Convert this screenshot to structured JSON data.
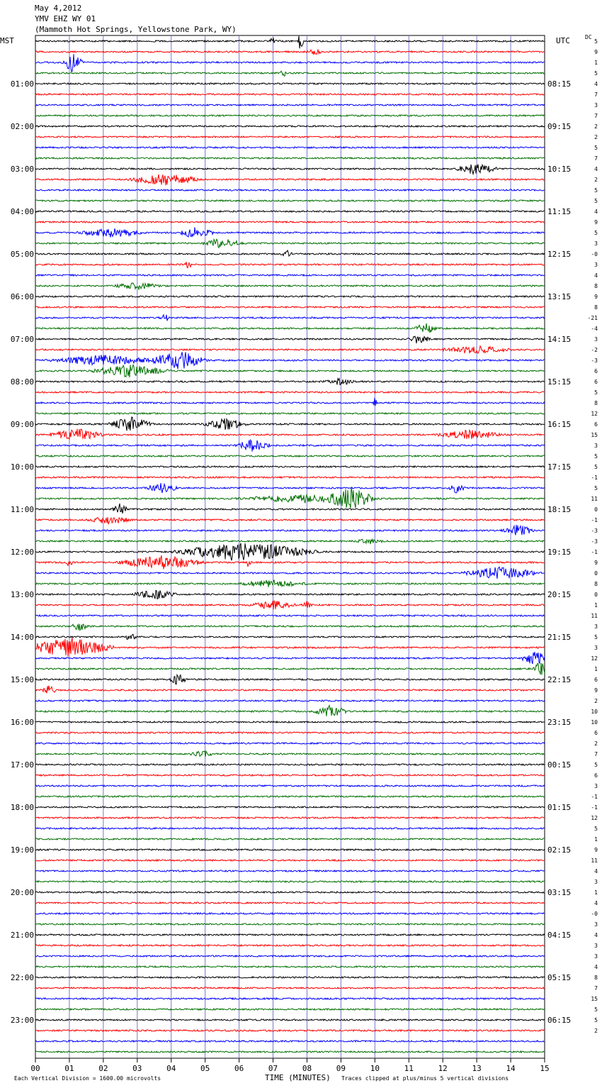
{
  "header": {
    "date": "May 4,2012",
    "station": "YMV EHZ WY 01",
    "location": "(Mammoth Hot Springs, Yellowstone Park, WY)"
  },
  "footer": {
    "scale_note": "Each Vertical Division = 1600.00 microvolts",
    "axis_title": "TIME (MINUTES)",
    "clip_note": "Traces clipped at plus/minus 5 vertical divisions"
  },
  "chart_data": {
    "type": "line",
    "left_axis_label": "MST",
    "right_axis_label": "UTC",
    "dc_label": "DC",
    "x_ticks": [
      "00",
      "01",
      "02",
      "03",
      "04",
      "05",
      "06",
      "07",
      "08",
      "09",
      "10",
      "11",
      "12",
      "13",
      "14",
      "15"
    ],
    "xlim": [
      0,
      15
    ],
    "trace_colors": [
      "#000000",
      "#ff0000",
      "#0000ff",
      "#007000"
    ],
    "grid_color": "#7777cc",
    "mst_labels": [
      "01:00",
      "02:00",
      "03:00",
      "04:00",
      "05:00",
      "06:00",
      "07:00",
      "08:00",
      "09:00",
      "10:00",
      "11:00",
      "12:00",
      "13:00",
      "14:00",
      "15:00",
      "16:00",
      "17:00",
      "18:00",
      "19:00",
      "20:00",
      "21:00",
      "22:00",
      "23:00"
    ],
    "utc_labels": [
      "08:15",
      "09:15",
      "10:15",
      "11:15",
      "12:15",
      "13:15",
      "14:15",
      "15:15",
      "16:15",
      "17:15",
      "18:15",
      "19:15",
      "20:15",
      "21:15",
      "22:15",
      "23:15",
      "00:15",
      "01:15",
      "02:15",
      "03:15",
      "04:15",
      "05:15",
      "06:15"
    ],
    "dc_values": [
      "5",
      "9",
      "1",
      "5",
      "4",
      "7",
      "3",
      "7",
      "2",
      "2",
      "5",
      "7",
      "4",
      "2",
      "5",
      "5",
      "4",
      "9",
      "5",
      "3",
      "-0",
      "3",
      "4",
      "8",
      "9",
      "8",
      "-21",
      "-4",
      "3",
      "-2",
      "-3",
      "6",
      "6",
      "5",
      "8",
      "12",
      "6",
      "15",
      "3",
      "5",
      "5",
      "-1",
      "5",
      "11",
      "0",
      "-1",
      "-3",
      "-3",
      "-1",
      "9",
      "0",
      "8",
      "0",
      "1",
      "11",
      "3",
      "5",
      "3",
      "12",
      "1",
      "6",
      "9",
      "2",
      "10",
      "10",
      "6",
      "2",
      "7",
      "5",
      "6",
      "3",
      "-1",
      "-1",
      "12",
      "5",
      "1",
      "9",
      "11",
      "4",
      "3",
      "1",
      "4",
      "-0",
      "3",
      "4",
      "3",
      "3",
      "4",
      "8",
      "7",
      "15",
      "5",
      "5",
      "2"
    ],
    "events": [
      {
        "trace": 0,
        "minute": 7.0,
        "amp": 0.35,
        "dur": 0.15
      },
      {
        "trace": 0,
        "minute": 7.8,
        "amp": 0.9,
        "dur": 0.12
      },
      {
        "trace": 1,
        "minute": 8.2,
        "amp": 0.3,
        "dur": 0.3
      },
      {
        "trace": 2,
        "minute": 1.1,
        "amp": 1.0,
        "dur": 0.35
      },
      {
        "trace": 3,
        "minute": 7.3,
        "amp": 0.6,
        "dur": 0.1
      },
      {
        "trace": 12,
        "minute": 13.0,
        "amp": 0.55,
        "dur": 0.8
      },
      {
        "trace": 13,
        "minute": 3.8,
        "amp": 0.55,
        "dur": 1.3
      },
      {
        "trace": 18,
        "minute": 2.2,
        "amp": 0.45,
        "dur": 1.2
      },
      {
        "trace": 18,
        "minute": 4.7,
        "amp": 0.5,
        "dur": 0.7
      },
      {
        "trace": 19,
        "minute": 5.5,
        "amp": 0.55,
        "dur": 0.7
      },
      {
        "trace": 20,
        "minute": 7.4,
        "amp": 0.35,
        "dur": 0.2
      },
      {
        "trace": 21,
        "minute": 4.5,
        "amp": 0.35,
        "dur": 0.15
      },
      {
        "trace": 23,
        "minute": 3.0,
        "amp": 0.35,
        "dur": 0.8
      },
      {
        "trace": 26,
        "minute": 3.8,
        "amp": 0.45,
        "dur": 0.2
      },
      {
        "trace": 27,
        "minute": 11.5,
        "amp": 0.55,
        "dur": 0.4
      },
      {
        "trace": 28,
        "minute": 11.3,
        "amp": 0.5,
        "dur": 0.4
      },
      {
        "trace": 29,
        "minute": 13.0,
        "amp": 0.35,
        "dur": 1.3
      },
      {
        "trace": 30,
        "minute": 4.2,
        "amp": 1.0,
        "dur": 1.0
      },
      {
        "trace": 30,
        "minute": 2.0,
        "amp": 0.5,
        "dur": 2.0
      },
      {
        "trace": 31,
        "minute": 2.8,
        "amp": 0.6,
        "dur": 1.4
      },
      {
        "trace": 32,
        "minute": 9.0,
        "amp": 0.3,
        "dur": 0.6
      },
      {
        "trace": 34,
        "minute": 10.0,
        "amp": 0.8,
        "dur": 0.05
      },
      {
        "trace": 36,
        "minute": 2.8,
        "amp": 0.7,
        "dur": 0.8
      },
      {
        "trace": 36,
        "minute": 5.6,
        "amp": 0.55,
        "dur": 0.8
      },
      {
        "trace": 37,
        "minute": 1.2,
        "amp": 0.6,
        "dur": 1.0
      },
      {
        "trace": 37,
        "minute": 12.8,
        "amp": 0.45,
        "dur": 1.2
      },
      {
        "trace": 38,
        "minute": 6.4,
        "amp": 0.6,
        "dur": 0.7
      },
      {
        "trace": 42,
        "minute": 3.7,
        "amp": 0.5,
        "dur": 0.6
      },
      {
        "trace": 42,
        "minute": 12.4,
        "amp": 0.45,
        "dur": 0.3
      },
      {
        "trace": 43,
        "minute": 9.3,
        "amp": 1.0,
        "dur": 0.8
      },
      {
        "trace": 43,
        "minute": 8.0,
        "amp": 0.35,
        "dur": 2.5
      },
      {
        "trace": 44,
        "minute": 2.5,
        "amp": 0.55,
        "dur": 0.3
      },
      {
        "trace": 45,
        "minute": 2.2,
        "amp": 0.4,
        "dur": 0.8
      },
      {
        "trace": 46,
        "minute": 14.2,
        "amp": 0.55,
        "dur": 0.6
      },
      {
        "trace": 47,
        "minute": 9.8,
        "amp": 0.25,
        "dur": 0.6
      },
      {
        "trace": 48,
        "minute": 6.2,
        "amp": 1.0,
        "dur": 2.5
      },
      {
        "trace": 49,
        "minute": 3.7,
        "amp": 0.7,
        "dur": 1.6
      },
      {
        "trace": 49,
        "minute": 6.3,
        "amp": 0.9,
        "dur": 0.1
      },
      {
        "trace": 49,
        "minute": 1.0,
        "amp": 0.6,
        "dur": 0.1
      },
      {
        "trace": 50,
        "minute": 13.7,
        "amp": 0.6,
        "dur": 1.4
      },
      {
        "trace": 51,
        "minute": 7.0,
        "amp": 0.35,
        "dur": 1.2
      },
      {
        "trace": 52,
        "minute": 3.5,
        "amp": 0.45,
        "dur": 0.8
      },
      {
        "trace": 53,
        "minute": 7.0,
        "amp": 0.45,
        "dur": 0.8
      },
      {
        "trace": 53,
        "minute": 8.0,
        "amp": 0.35,
        "dur": 0.2
      },
      {
        "trace": 55,
        "minute": 1.3,
        "amp": 0.45,
        "dur": 0.3
      },
      {
        "trace": 56,
        "minute": 2.8,
        "amp": 0.45,
        "dur": 0.2
      },
      {
        "trace": 57,
        "minute": 1.0,
        "amp": 1.0,
        "dur": 1.6
      },
      {
        "trace": 58,
        "minute": 14.7,
        "amp": 0.7,
        "dur": 0.5
      },
      {
        "trace": 59,
        "minute": 14.9,
        "amp": 0.8,
        "dur": 0.3
      },
      {
        "trace": 60,
        "minute": 4.2,
        "amp": 0.55,
        "dur": 0.3
      },
      {
        "trace": 61,
        "minute": 0.4,
        "amp": 0.4,
        "dur": 0.3
      },
      {
        "trace": 63,
        "minute": 8.7,
        "amp": 0.6,
        "dur": 0.6
      },
      {
        "trace": 67,
        "minute": 4.9,
        "amp": 0.35,
        "dur": 0.4
      }
    ]
  }
}
